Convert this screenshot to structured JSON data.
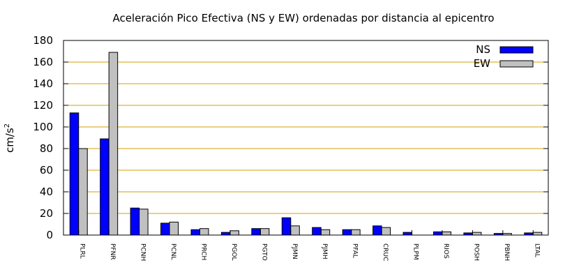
{
  "chart_data": {
    "type": "bar",
    "title": "Aceleración Pico Efectiva (NS y EW) ordenadas por distancia al epicentro",
    "ylabel_base": "cm/s",
    "ylabel_sup": "2",
    "ylim": [
      0,
      180
    ],
    "yticks": [
      0,
      20,
      40,
      60,
      80,
      100,
      120,
      140,
      160,
      180
    ],
    "yticks_text": [
      "0",
      "20",
      "40",
      "60",
      "80",
      "100",
      "120",
      "140",
      "160",
      "180"
    ],
    "grid": true,
    "legend_position": "top-right",
    "categories": [
      "PLRL",
      "PFNR",
      "PCNH",
      "PCNL",
      "PRCH",
      "PGOL",
      "PGTO",
      "PJMN",
      "PJMH",
      "PFAL",
      "CRUC",
      "PLPM",
      "RIOS",
      "POSH",
      "PBNH",
      "LTAL"
    ],
    "series": [
      {
        "name": "NS",
        "color": "#0000ff",
        "values": [
          113,
          89,
          25,
          11,
          5,
          2.5,
          6,
          16,
          7,
          5,
          8.5,
          2.5,
          3,
          2,
          1.5,
          2
        ]
      },
      {
        "name": "EW",
        "color": "#c0c0c0",
        "values": [
          80,
          169,
          24,
          12,
          6,
          4,
          6,
          8.5,
          5,
          5,
          7,
          null,
          3,
          2.5,
          1.5,
          2.5
        ]
      }
    ],
    "colors": {
      "grid": "#d4a000",
      "axis": "#000000"
    }
  }
}
